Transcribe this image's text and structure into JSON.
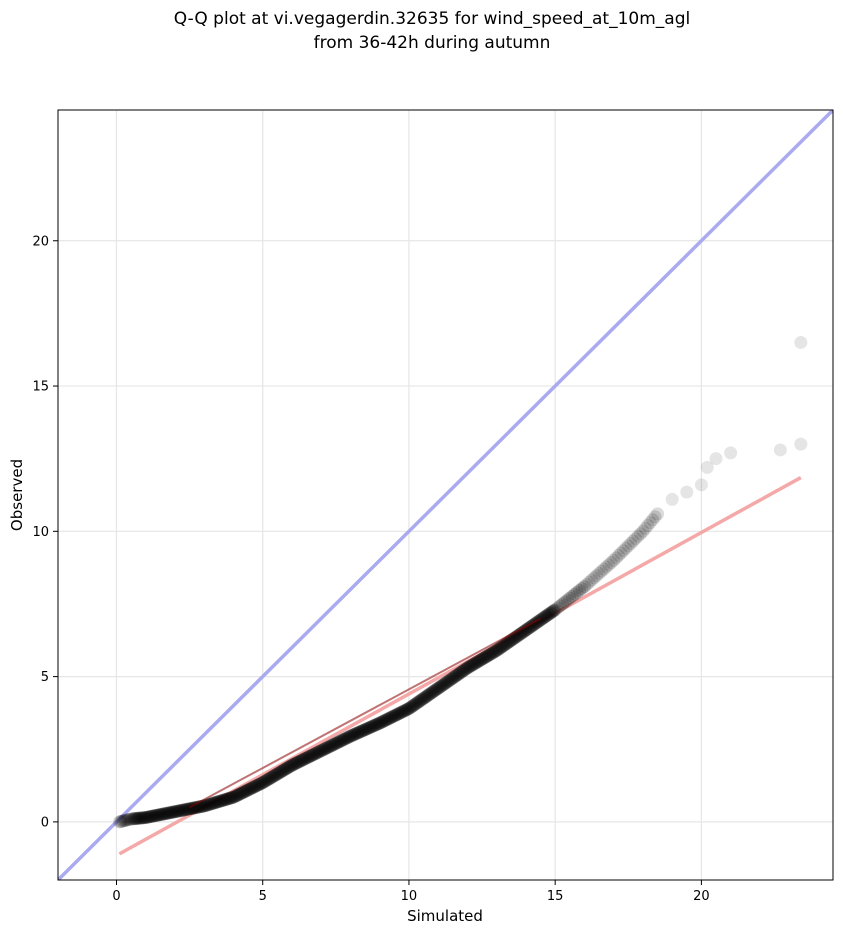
{
  "chart_data": {
    "type": "scatter",
    "title": "Q-Q plot at vi.vegagerdin.32635 for wind_speed_at_10m_agl",
    "subtitle": "from 36-42h during autumn",
    "xlabel": "Simulated",
    "ylabel": "Observed",
    "xlim": [
      -2,
      24.5
    ],
    "ylim": [
      -2,
      24.5
    ],
    "xticks": [
      0,
      5,
      10,
      15,
      20
    ],
    "yticks": [
      0,
      5,
      10,
      15,
      20
    ],
    "grid": true,
    "colors": {
      "points": "#000000",
      "identity_line": "#aaaaf0",
      "fit_line": "#f4a8a8",
      "fit_segment": "#8b0000"
    },
    "identity_line": {
      "from": [
        -2,
        -2
      ],
      "to": [
        24.5,
        24.5
      ]
    },
    "fit_line": {
      "from": [
        0.1,
        -1.1
      ],
      "to": [
        23.4,
        11.85
      ]
    },
    "fit_segment_dark": {
      "from": [
        2.5,
        0.5
      ],
      "to": [
        14.5,
        7.0
      ]
    },
    "quantile_curve": [
      [
        0.1,
        0.0
      ],
      [
        0.5,
        0.1
      ],
      [
        1.0,
        0.15
      ],
      [
        2.0,
        0.35
      ],
      [
        3.0,
        0.55
      ],
      [
        4.0,
        0.85
      ],
      [
        5.0,
        1.35
      ],
      [
        6.0,
        1.95
      ],
      [
        7.0,
        2.45
      ],
      [
        8.0,
        2.95
      ],
      [
        9.0,
        3.4
      ],
      [
        10.0,
        3.9
      ],
      [
        11.0,
        4.6
      ],
      [
        12.0,
        5.3
      ],
      [
        13.0,
        5.9
      ],
      [
        14.0,
        6.6
      ],
      [
        15.0,
        7.3
      ],
      [
        16.0,
        8.1
      ],
      [
        17.0,
        9.0
      ],
      [
        18.0,
        10.0
      ],
      [
        18.5,
        10.6
      ]
    ],
    "outliers": [
      [
        19.0,
        11.1
      ],
      [
        19.5,
        11.35
      ],
      [
        20.0,
        11.6
      ],
      [
        20.2,
        12.2
      ],
      [
        20.5,
        12.5
      ],
      [
        21.0,
        12.7
      ],
      [
        22.7,
        12.8
      ],
      [
        23.4,
        13.0
      ],
      [
        23.4,
        16.5
      ]
    ]
  }
}
